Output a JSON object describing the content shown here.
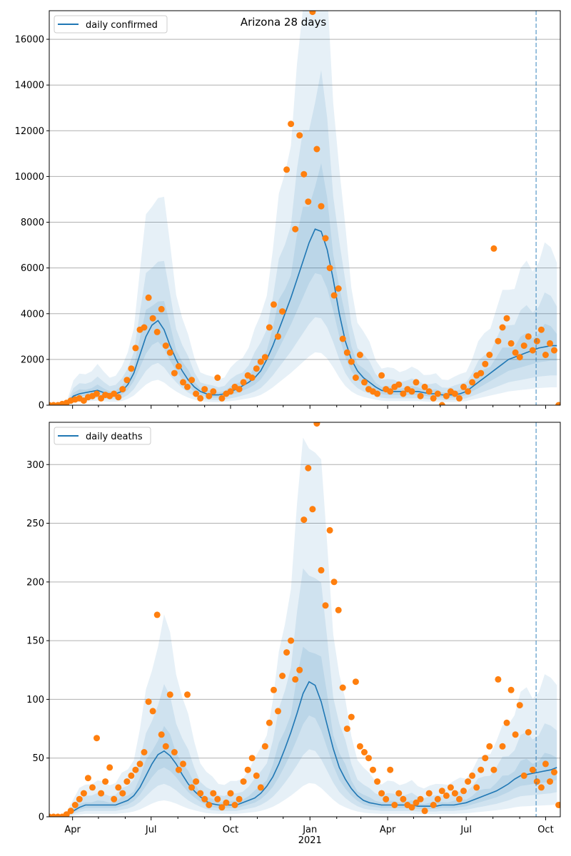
{
  "title": "Arizona 28 days",
  "colors": {
    "line": "#1f77b4",
    "points": "#ff7f0e",
    "band": "#1f77b4",
    "grid": "#b0b0b0"
  },
  "x_axis": {
    "start_date": "2020-03-05",
    "end_day": 592,
    "year_label": "2021",
    "major_ticks": [
      {
        "day": 27,
        "label": "Apr"
      },
      {
        "day": 118,
        "label": "Jul"
      },
      {
        "day": 210,
        "label": "Oct"
      },
      {
        "day": 302,
        "label": "Jan"
      },
      {
        "day": 392,
        "label": "Apr"
      },
      {
        "day": 483,
        "label": "Jul"
      },
      {
        "day": 575,
        "label": "Oct"
      }
    ],
    "minor_ticks": [
      57,
      88,
      149,
      180,
      241,
      271,
      333,
      361,
      422,
      453,
      514,
      545
    ],
    "forecast_start_day": 564
  },
  "chart_data": [
    {
      "type": "line",
      "legend": "daily confirmed",
      "legend_position": "top-left",
      "grid": true,
      "ylim": [
        0,
        17250
      ],
      "yticks": [
        0,
        2000,
        4000,
        6000,
        8000,
        10000,
        12000,
        14000,
        16000
      ],
      "line_step_days": 7,
      "line": [
        0,
        0,
        0,
        100,
        400,
        500,
        550,
        600,
        650,
        550,
        500,
        500,
        600,
        900,
        1400,
        2200,
        3000,
        3500,
        3700,
        3300,
        2600,
        2000,
        1500,
        1100,
        800,
        600,
        500,
        450,
        450,
        500,
        600,
        700,
        850,
        1000,
        1200,
        1500,
        2000,
        2600,
        3300,
        4000,
        4700,
        5500,
        6300,
        7100,
        7700,
        7600,
        6800,
        5500,
        4000,
        2800,
        2000,
        1500,
        1200,
        1000,
        800,
        650,
        600,
        600,
        600,
        600,
        600,
        600,
        550,
        500,
        500,
        450,
        450,
        450,
        500,
        600,
        800,
        1000,
        1200,
        1400,
        1600,
        1800,
        2000,
        2100,
        2200,
        2300,
        2400,
        2500,
        2550,
        2600,
        2600
      ],
      "band_factors": [
        [
          0.75,
          1.3
        ],
        [
          0.5,
          1.8
        ],
        [
          0.3,
          2.6
        ]
      ],
      "points_step_days": 5,
      "points": [
        0,
        0,
        0,
        50,
        100,
        200,
        250,
        300,
        200,
        350,
        400,
        500,
        300,
        450,
        400,
        500,
        350,
        700,
        1100,
        1600,
        2500,
        3300,
        3400,
        4700,
        3800,
        3200,
        4200,
        2600,
        2300,
        1400,
        1700,
        1000,
        800,
        1100,
        500,
        300,
        700,
        400,
        600,
        1200,
        300,
        500,
        600,
        800,
        700,
        1000,
        1300,
        1200,
        1600,
        1900,
        2100,
        3400,
        4400,
        3000,
        4100,
        10300,
        12300,
        7700,
        11800,
        10100,
        8900,
        17200,
        11200,
        8700,
        7300,
        6000,
        4800,
        5100,
        2900,
        2300,
        1900,
        1200,
        2200,
        1000,
        700,
        600,
        500,
        1300,
        700,
        600,
        800,
        900,
        500,
        700,
        600,
        1000,
        400,
        800,
        600,
        300,
        500,
        0,
        400,
        600,
        500,
        300,
        800,
        600,
        1000,
        1300,
        1400,
        1800,
        2200,
        6850,
        2800,
        3400,
        3800,
        2700,
        2300,
        2100,
        2600,
        3000,
        2400,
        2800,
        3300,
        2200,
        2700,
        2400,
        0
      ]
    },
    {
      "type": "line",
      "legend": "daily deaths",
      "legend_position": "top-left",
      "grid": true,
      "ylim": [
        0,
        336
      ],
      "yticks": [
        0,
        50,
        100,
        150,
        200,
        250,
        300
      ],
      "line_step_days": 7,
      "line": [
        0,
        0,
        0,
        2,
        5,
        8,
        10,
        10,
        10,
        10,
        10,
        10,
        12,
        14,
        18,
        25,
        35,
        45,
        53,
        56,
        52,
        45,
        36,
        28,
        22,
        17,
        13,
        11,
        10,
        10,
        10,
        10,
        12,
        14,
        16,
        20,
        26,
        34,
        45,
        58,
        72,
        88,
        105,
        115,
        112,
        98,
        78,
        58,
        42,
        32,
        24,
        18,
        14,
        12,
        11,
        10,
        10,
        10,
        10,
        10,
        10,
        9,
        9,
        9,
        9,
        10,
        10,
        10,
        11,
        12,
        14,
        16,
        18,
        20,
        22,
        25,
        28,
        32,
        35,
        36,
        37,
        38,
        39,
        40,
        42
      ],
      "band_factors": [
        [
          0.75,
          1.3
        ],
        [
          0.5,
          1.9
        ],
        [
          0.25,
          2.9
        ]
      ],
      "points_step_days": 5,
      "points": [
        0,
        0,
        0,
        0,
        2,
        5,
        10,
        15,
        20,
        33,
        25,
        67,
        20,
        30,
        42,
        15,
        25,
        20,
        30,
        35,
        40,
        45,
        55,
        98,
        90,
        172,
        70,
        60,
        104,
        55,
        40,
        45,
        104,
        25,
        30,
        20,
        15,
        10,
        20,
        15,
        8,
        12,
        20,
        10,
        15,
        30,
        40,
        50,
        35,
        25,
        60,
        80,
        108,
        90,
        120,
        140,
        150,
        117,
        125,
        253,
        297,
        262,
        335,
        210,
        180,
        244,
        200,
        176,
        110,
        75,
        85,
        115,
        60,
        55,
        50,
        40,
        30,
        20,
        15,
        40,
        10,
        20,
        15,
        10,
        8,
        12,
        15,
        5,
        20,
        10,
        15,
        22,
        18,
        25,
        20,
        15,
        22,
        30,
        35,
        25,
        40,
        50,
        60,
        40,
        117,
        60,
        80,
        108,
        70,
        95,
        35,
        72,
        40,
        30,
        25,
        45,
        30,
        38,
        10
      ]
    }
  ]
}
